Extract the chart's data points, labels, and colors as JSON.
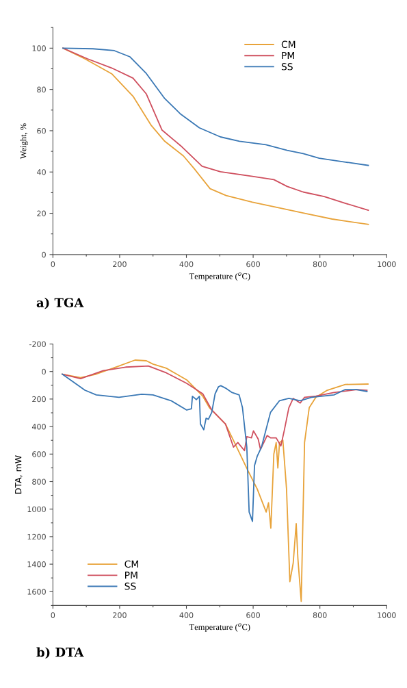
{
  "chart_data": [
    {
      "type": "line",
      "title": "a) TGA",
      "xlabel": "Temperature ($^{o}$C)",
      "ylabel": "Weight, %",
      "xlim": [
        0,
        1000
      ],
      "xticks": [
        0,
        200,
        400,
        600,
        800,
        1000
      ],
      "ylim": [
        0,
        110
      ],
      "yticks": [
        0,
        20,
        40,
        60,
        80,
        100
      ],
      "grid": false,
      "legend": "top right",
      "series": [
        {
          "name": "CM",
          "color": "#e8a33a",
          "x": [
            30,
            96,
            176,
            240,
            295,
            335,
            391,
            423,
            471,
            519,
            598,
            678,
            757,
            837,
            945
          ],
          "values": [
            100,
            94.8,
            87.6,
            76.7,
            62.5,
            54.9,
            47.8,
            41.7,
            31.9,
            28.6,
            25.4,
            22.6,
            19.9,
            17.2,
            14.6
          ]
        },
        {
          "name": "PM",
          "color": "#cf4f5e",
          "x": [
            30,
            104,
            176,
            240,
            280,
            327,
            383,
            447,
            502,
            598,
            662,
            702,
            750,
            813,
            877,
            945
          ],
          "values": [
            100,
            94.8,
            90.4,
            85.5,
            77.8,
            60.3,
            52.7,
            42.8,
            40.1,
            37.9,
            36.3,
            33,
            30.3,
            28.1,
            24.8,
            21.5
          ]
        },
        {
          "name": "SS",
          "color": "#3a78b5",
          "x": [
            30,
            120,
            184,
            231,
            280,
            335,
            383,
            439,
            502,
            559,
            638,
            702,
            750,
            798,
            877,
            945
          ],
          "values": [
            100,
            99.7,
            98.8,
            95.8,
            87.7,
            75.6,
            68,
            61.4,
            57,
            54.9,
            53.2,
            50.5,
            48.9,
            46.7,
            44.8,
            43.2
          ]
        }
      ]
    },
    {
      "type": "line",
      "title": "b) DTA",
      "xlabel": "Temperature ($^{o}$C)",
      "ylabel": "DTA, mW",
      "xlim": [
        0,
        1000
      ],
      "xticks": [
        0,
        200,
        400,
        600,
        800,
        1000
      ],
      "ylim": [
        1700,
        -200
      ],
      "yticks": [
        -200,
        0,
        200,
        400,
        600,
        800,
        1000,
        1200,
        1400,
        1600
      ],
      "grid": false,
      "legend": "bottom left",
      "series": [
        {
          "name": "CM",
          "color": "#e8a33a",
          "x": [
            28,
            83,
            130,
            198,
            246,
            280,
            300,
            340,
            401,
            449,
            469,
            517,
            544,
            584,
            612,
            639,
            646,
            653,
            662,
            669,
            674,
            679,
            689,
            700,
            710,
            720,
            729,
            734,
            744,
            754,
            768,
            788,
            822,
            876,
            944
          ],
          "values": [
            19,
            44,
            19,
            -40,
            -83,
            -78,
            -54,
            -24,
            61,
            179,
            263,
            381,
            516,
            718,
            853,
            1021,
            954,
            1139,
            600,
            516,
            701,
            516,
            499,
            853,
            1527,
            1392,
            1106,
            1358,
            1670,
            516,
            263,
            187,
            136,
            94,
            91
          ]
        },
        {
          "name": "PM",
          "color": "#cf4f5e",
          "x": [
            28,
            83,
            151,
            218,
            286,
            340,
            401,
            449,
            476,
            517,
            541,
            554,
            574,
            581,
            595,
            601,
            615,
            622,
            632,
            642,
            652,
            669,
            683,
            693,
            707,
            720,
            741,
            754,
            788,
            842,
            910,
            941
          ],
          "values": [
            19,
            52,
            -7,
            -32,
            -40,
            10,
            86,
            162,
            280,
            381,
            549,
            516,
            575,
            474,
            482,
            431,
            490,
            566,
            516,
            465,
            482,
            482,
            541,
            431,
            263,
            195,
            229,
            187,
            179,
            153,
            131,
            136
          ]
        },
        {
          "name": "SS",
          "color": "#3a78b5",
          "x": [
            28,
            96,
            130,
            198,
            266,
            300,
            354,
            401,
            415,
            418,
            430,
            439,
            442,
            452,
            459,
            466,
            476,
            486,
            496,
            503,
            517,
            537,
            558,
            568,
            581,
            588,
            598,
            604,
            612,
            625,
            652,
            679,
            707,
            741,
            775,
            808,
            842,
            876,
            910,
            941
          ],
          "values": [
            19,
            136,
            170,
            187,
            165,
            170,
            212,
            280,
            271,
            180,
            204,
            180,
            381,
            423,
            339,
            347,
            297,
            162,
            111,
            103,
            120,
            153,
            170,
            263,
            549,
            1021,
            1089,
            684,
            617,
            549,
            297,
            212,
            195,
            212,
            187,
            179,
            170,
            131,
            131,
            145
          ]
        }
      ]
    }
  ]
}
